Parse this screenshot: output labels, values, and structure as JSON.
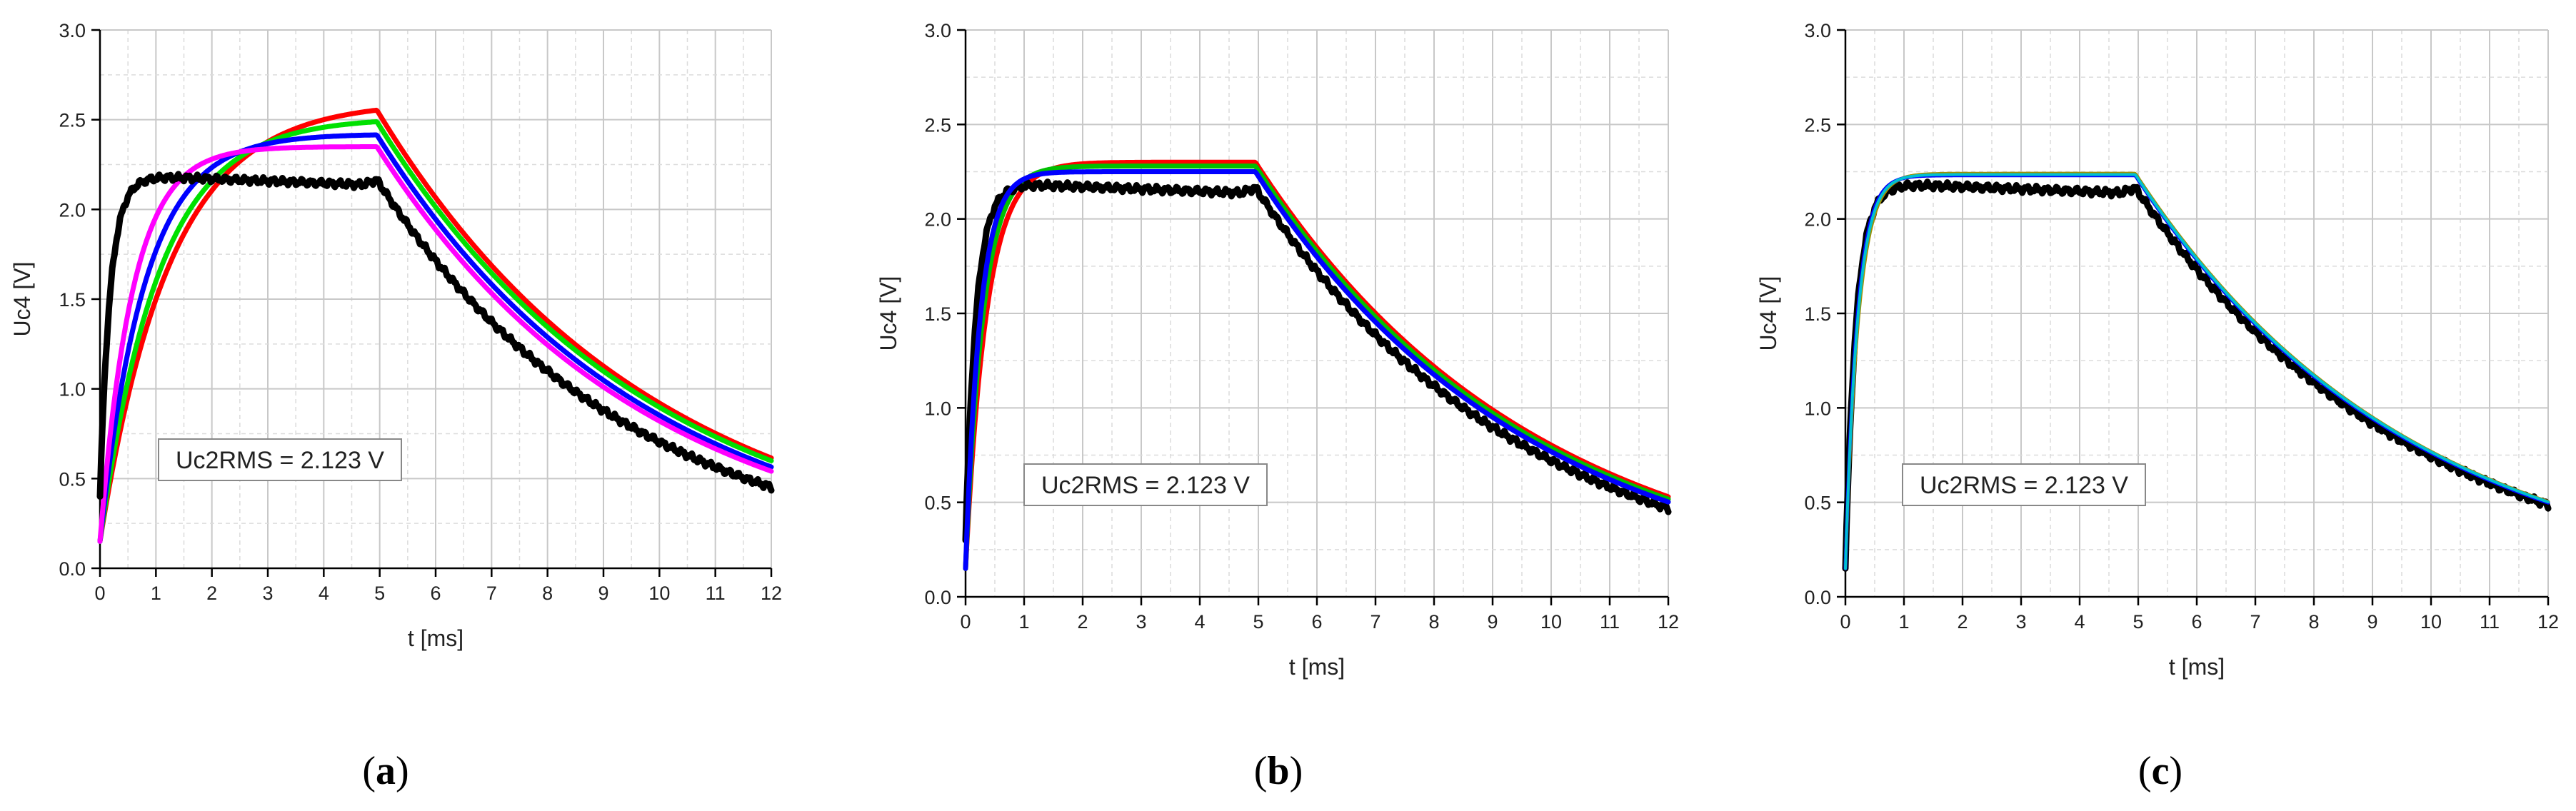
{
  "chart_data": [
    {
      "type": "line",
      "panel_label": "a",
      "xlabel": "t [ms]",
      "ylabel": "Uc4 [V]",
      "xlim": [
        0,
        12
      ],
      "ylim": [
        0,
        3.0
      ],
      "xticks": [
        0,
        1,
        2,
        3,
        4,
        5,
        6,
        7,
        8,
        9,
        10,
        11,
        12
      ],
      "yticks": [
        "0.0",
        "0.5",
        "1.0",
        "1.5",
        "2.0",
        "2.5",
        "3.0"
      ],
      "grid": true,
      "annotation": "Uc2RMS = 2.123 V",
      "series": [
        {
          "name": "red",
          "color": "#ff0000",
          "width": 7,
          "tau": 1.25,
          "plateau": 2.6,
          "fall_tau": 4.95,
          "start": 0.15
        },
        {
          "name": "green",
          "color": "#00e000",
          "width": 7,
          "tau": 1.05,
          "plateau": 2.51,
          "fall_tau": 4.95,
          "start": 0.15
        },
        {
          "name": "blue",
          "color": "#0000ff",
          "width": 7,
          "tau": 0.8,
          "plateau": 2.42,
          "fall_tau": 4.85,
          "start": 0.15
        },
        {
          "name": "magenta",
          "color": "#ff00ff",
          "width": 7,
          "tau": 0.58,
          "plateau": 2.35,
          "fall_tau": 4.8,
          "start": 0.15
        },
        {
          "name": "measured",
          "color": "#000000",
          "width": 9,
          "tau": 0.18,
          "plateau": 2.18,
          "fall_tau": 4.5,
          "start": 0.4,
          "measured": true
        }
      ]
    },
    {
      "type": "line",
      "panel_label": "b",
      "xlabel": "t [ms]",
      "ylabel": "Uc4 [V]",
      "xlim": [
        0,
        12
      ],
      "ylim": [
        0,
        3.0
      ],
      "xticks": [
        0,
        1,
        2,
        3,
        4,
        5,
        6,
        7,
        8,
        9,
        10,
        11,
        12
      ],
      "yticks": [
        "0.0",
        "0.5",
        "1.0",
        "1.5",
        "2.0",
        "2.5",
        "3.0"
      ],
      "grid": true,
      "annotation": "Uc2RMS = 2.123 V",
      "series": [
        {
          "name": "red",
          "color": "#ff0000",
          "width": 7,
          "tau": 0.36,
          "plateau": 2.3,
          "fall_tau": 4.8,
          "start": 0.15
        },
        {
          "name": "green",
          "color": "#00c000",
          "width": 7,
          "tau": 0.3,
          "plateau": 2.28,
          "fall_tau": 4.75,
          "start": 0.15
        },
        {
          "name": "measured",
          "color": "#000000",
          "width": 9,
          "tau": 0.18,
          "plateau": 2.18,
          "fall_tau": 4.6,
          "start": 0.3,
          "measured": true
        },
        {
          "name": "blue",
          "color": "#0000ff",
          "width": 7,
          "tau": 0.25,
          "plateau": 2.25,
          "fall_tau": 4.7,
          "start": 0.15
        }
      ]
    },
    {
      "type": "line",
      "panel_label": "c",
      "xlabel": "t [ms]",
      "ylabel": "Uc4 [V]",
      "xlim": [
        0,
        12
      ],
      "ylim": [
        0,
        3.0
      ],
      "xticks": [
        0,
        1,
        2,
        3,
        4,
        5,
        6,
        7,
        8,
        9,
        10,
        11,
        12
      ],
      "yticks": [
        "0.0",
        "0.5",
        "1.0",
        "1.5",
        "2.0",
        "2.5",
        "3.0"
      ],
      "grid": true,
      "annotation": "Uc2RMS = 2.123 V",
      "series": [
        {
          "name": "measured",
          "color": "#000000",
          "width": 9,
          "tau": 0.18,
          "plateau": 2.18,
          "fall_tau": 4.72,
          "start": 0.15,
          "measured": true
        },
        {
          "name": "olive",
          "color": "#a09000",
          "width": 5,
          "tau": 0.22,
          "plateau": 2.24,
          "fall_tau": 4.72,
          "start": 0.15
        },
        {
          "name": "blue",
          "color": "#0000ff",
          "width": 5,
          "tau": 0.2,
          "plateau": 2.23,
          "fall_tau": 4.7,
          "start": 0.15
        },
        {
          "name": "cyan",
          "color": "#00c0d0",
          "width": 4,
          "tau": 0.21,
          "plateau": 2.235,
          "fall_tau": 4.72,
          "start": 0.15
        }
      ]
    }
  ]
}
